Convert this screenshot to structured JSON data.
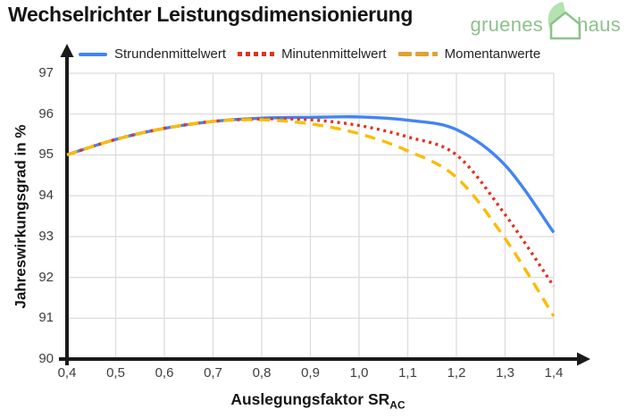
{
  "header": {
    "title": "Wechselrichter Leistungsdimensionierung",
    "logo": {
      "word1": "gruenes",
      "word2": "haus",
      "text_color": "#8cc28c",
      "leaf_color": "#b5e2b1",
      "house_color": "#8cc48c"
    }
  },
  "chart_data": {
    "type": "line",
    "title": "Wechselrichter Leistungsdimensionierung",
    "xlabel": "Auslegungsfaktor SR",
    "xlabel_subscript": "AC",
    "ylabel": "Jahreswirkungsgrad in %",
    "xlim": [
      0.4,
      1.4
    ],
    "ylim": [
      90,
      97
    ],
    "grid": true,
    "legend_position": "top-left",
    "x_tick_values": [
      0.4,
      0.5,
      0.6,
      0.7,
      0.8,
      0.9,
      1.0,
      1.1,
      1.2,
      1.3,
      1.4
    ],
    "x_tick_labels": [
      "0,4",
      "0,5",
      "0,6",
      "0,7",
      "0,8",
      "0,9",
      "1,0",
      "1,1",
      "1,2",
      "1,3",
      "1,4"
    ],
    "y_tick_values": [
      90,
      91,
      92,
      93,
      94,
      95,
      96,
      97
    ],
    "y_tick_labels": [
      "90",
      "91",
      "92",
      "93",
      "94",
      "95",
      "96",
      "97"
    ],
    "x": [
      0.4,
      0.5,
      0.6,
      0.7,
      0.8,
      0.9,
      1.0,
      1.1,
      1.2,
      1.3,
      1.4
    ],
    "series": [
      {
        "name": "Strundenmittelwert",
        "color": "#4285f4",
        "line_style": "solid",
        "values": [
          95.0,
          95.38,
          95.65,
          95.82,
          95.9,
          95.92,
          95.93,
          95.85,
          95.62,
          94.75,
          93.1
        ]
      },
      {
        "name": "Minutenmittelwert",
        "color": "#e3321f",
        "line_style": "dotted",
        "values": [
          95.0,
          95.38,
          95.65,
          95.82,
          95.88,
          95.86,
          95.72,
          95.44,
          95.0,
          93.54,
          91.78
        ]
      },
      {
        "name": "Momentanwerte",
        "color": "#fbbc05",
        "legend_marker_color": "#e0a233",
        "line_style": "dashed",
        "values": [
          95.0,
          95.38,
          95.65,
          95.82,
          95.86,
          95.76,
          95.52,
          95.1,
          94.45,
          92.95,
          91.05
        ]
      }
    ],
    "axis_color": "#1a1a1a",
    "grid_color": "#dcdcdc"
  }
}
